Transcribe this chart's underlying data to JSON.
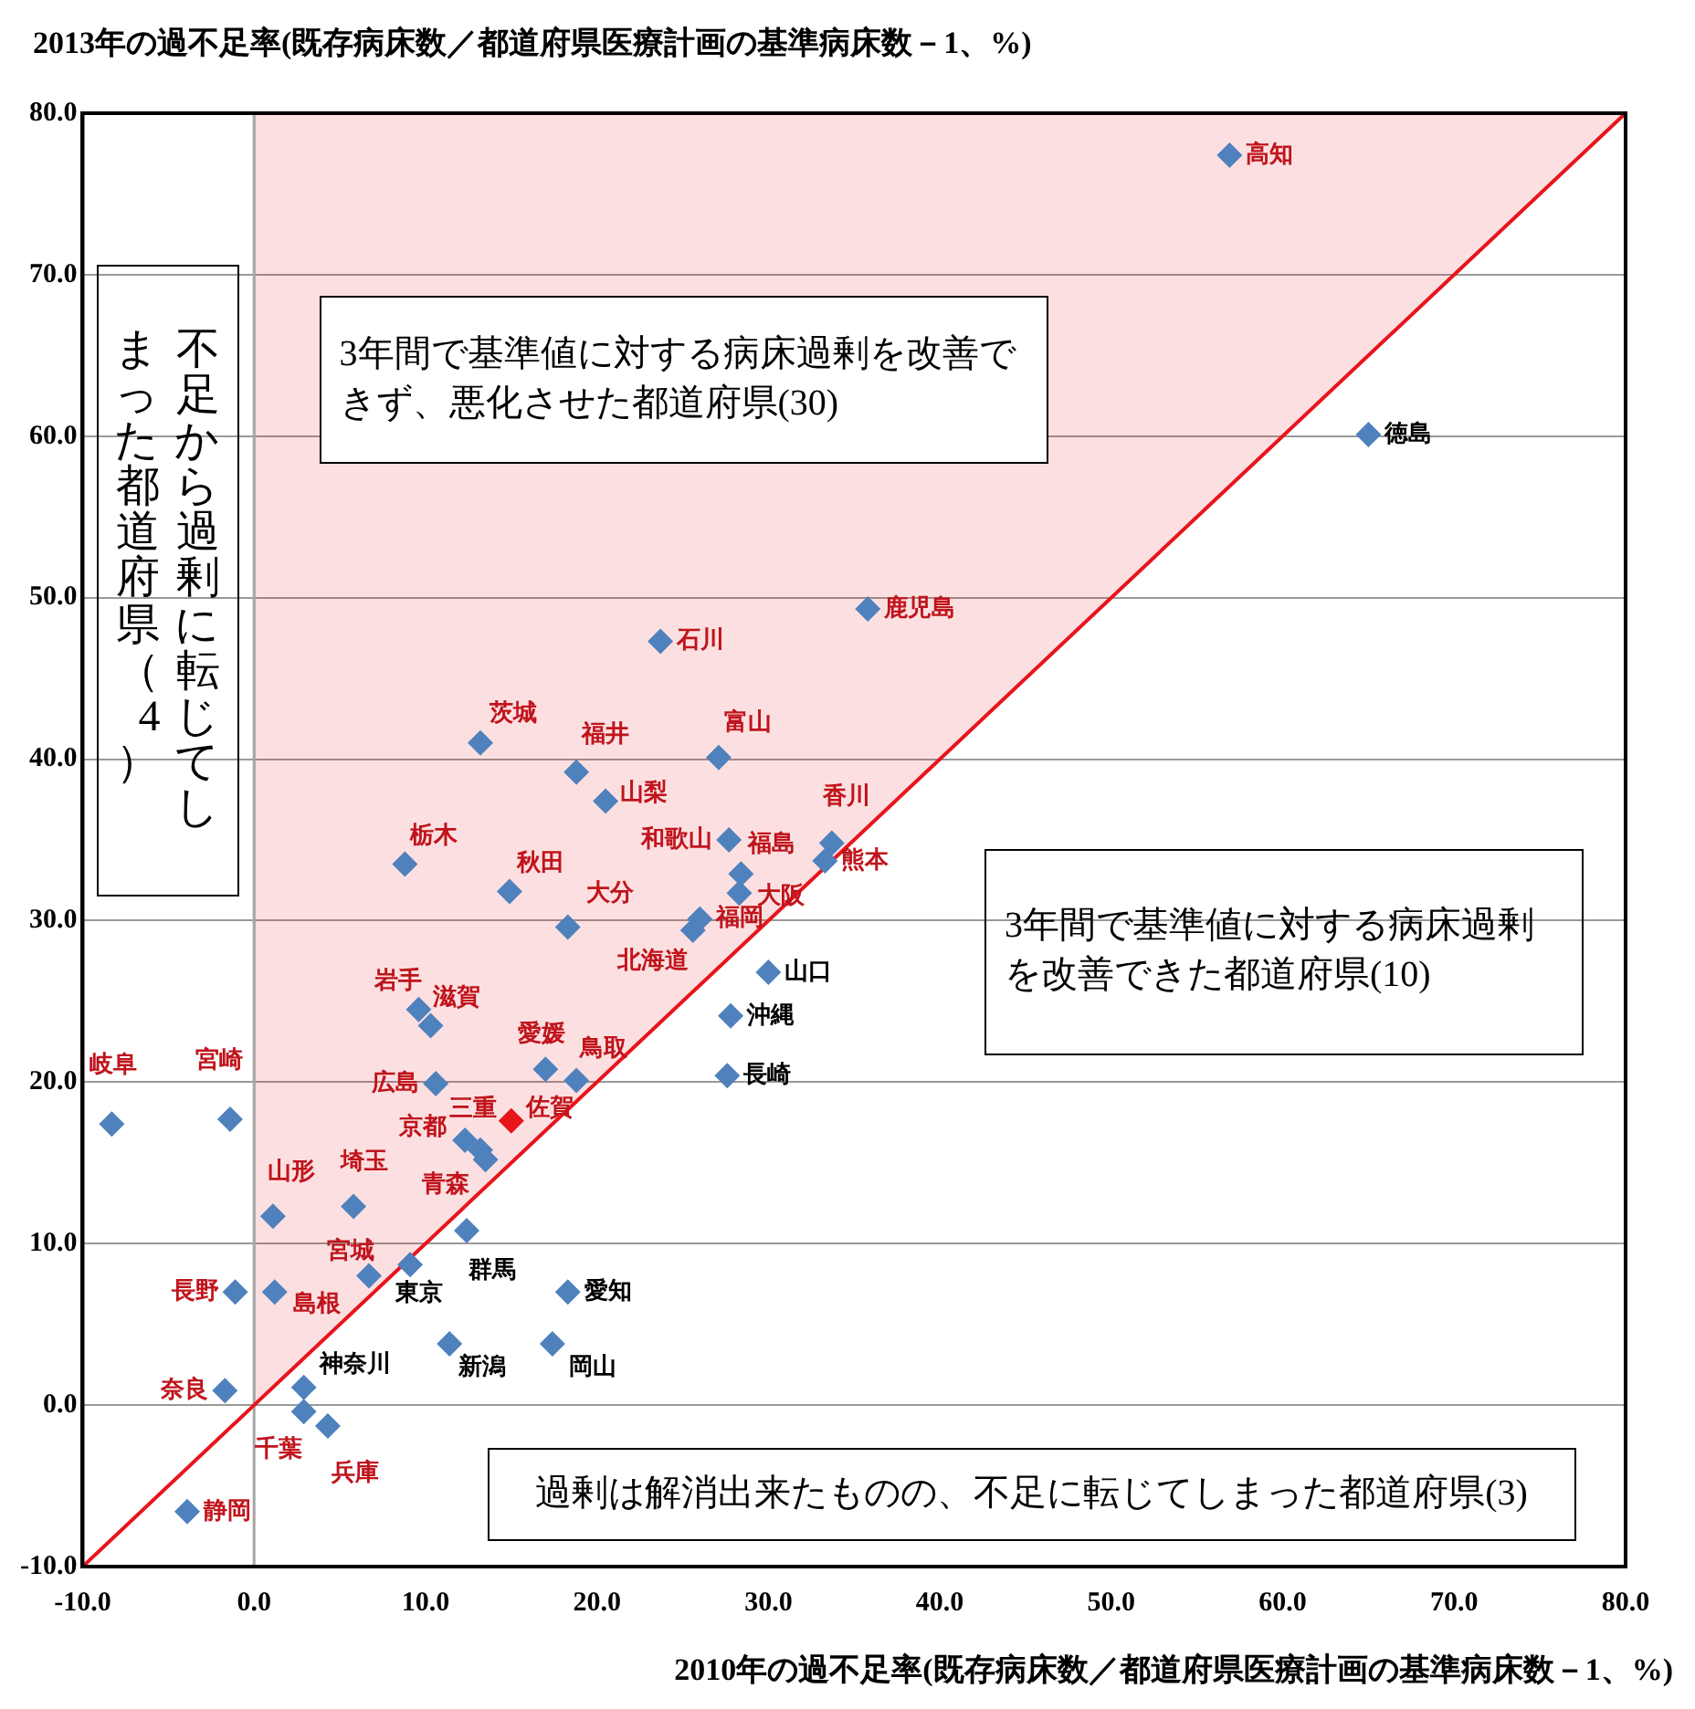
{
  "chart_data": {
    "type": "scatter",
    "xlabel": "2010年の過不足率(既存病床数／都道府県医療計画の基準病床数－1、%)",
    "ylabel": "2013年の過不足率(既存病床数／都道府県医療計画の基準病床数－1、%)",
    "xlim": [
      -10,
      80
    ],
    "ylim": [
      -10,
      80
    ],
    "xticks": [
      {
        "value": -10,
        "label": "-10.0"
      },
      {
        "value": 0,
        "label": "0.0"
      },
      {
        "value": 10,
        "label": "10.0"
      },
      {
        "value": 20,
        "label": "20.0"
      },
      {
        "value": 30,
        "label": "30.0"
      },
      {
        "value": 40,
        "label": "40.0"
      },
      {
        "value": 50,
        "label": "50.0"
      },
      {
        "value": 60,
        "label": "60.0"
      },
      {
        "value": 70,
        "label": "70.0"
      },
      {
        "value": 80,
        "label": "80.0"
      }
    ],
    "yticks": [
      {
        "value": -10,
        "label": "-10.0"
      },
      {
        "value": 0,
        "label": "0.0"
      },
      {
        "value": 10,
        "label": "10.0"
      },
      {
        "value": 20,
        "label": "20.0"
      },
      {
        "value": 30,
        "label": "30.0"
      },
      {
        "value": 40,
        "label": "40.0"
      },
      {
        "value": 50,
        "label": "50.0"
      },
      {
        "value": 60,
        "label": "60.0"
      },
      {
        "value": 70,
        "label": "70.0"
      },
      {
        "value": 80,
        "label": "80.0"
      }
    ],
    "grid": "y",
    "legend": false,
    "marker": "diamond",
    "ref_lines": [
      {
        "axis": "x",
        "value": 0,
        "color": "#a6a6a6"
      }
    ],
    "series": [
      {
        "x": [
          56.9,
          65.0,
          35.8,
          23.7,
          13.2,
          18.8,
          27.1,
          20.5,
          27.7,
          33.7,
          33.3,
          28.4,
          28.3,
          14.9,
          8.8,
          18.3,
          26.0,
          25.6,
          30.0,
          27.8,
          27.6,
          9.6,
          10.3,
          17.0,
          18.8,
          10.6,
          -8.3,
          -1.4,
          12.3,
          13.2,
          13.5,
          15.0,
          1.1,
          5.8,
          6.7,
          9.1,
          12.4,
          -1.1,
          1.2,
          11.4,
          18.3,
          17.4,
          -1.7,
          2.9,
          2.9,
          4.3,
          -3.9
        ],
        "values": [
          77.4,
          60.1,
          49.3,
          47.3,
          41.0,
          39.2,
          40.1,
          37.4,
          35.0,
          34.8,
          33.7,
          32.9,
          31.7,
          31.8,
          33.5,
          29.6,
          30.1,
          29.4,
          26.8,
          24.1,
          20.4,
          24.5,
          23.5,
          20.8,
          20.1,
          19.9,
          17.4,
          17.7,
          16.4,
          15.8,
          15.2,
          17.6,
          11.7,
          12.3,
          8.0,
          8.7,
          10.8,
          7.0,
          7.0,
          3.8,
          7.0,
          3.8,
          0.9,
          1.1,
          -0.4,
          -1.3,
          -6.6
        ],
        "colors": [
          "#4f81bd",
          "#4f81bd",
          "#4f81bd",
          "#4f81bd",
          "#4f81bd",
          "#4f81bd",
          "#4f81bd",
          "#4f81bd",
          "#4f81bd",
          "#4f81bd",
          "#4f81bd",
          "#4f81bd",
          "#4f81bd",
          "#4f81bd",
          "#4f81bd",
          "#4f81bd",
          "#4f81bd",
          "#4f81bd",
          "#4f81bd",
          "#4f81bd",
          "#4f81bd",
          "#4f81bd",
          "#4f81bd",
          "#4f81bd",
          "#4f81bd",
          "#4f81bd",
          "#4f81bd",
          "#4f81bd",
          "#4f81bd",
          "#4f81bd",
          "#4f81bd",
          "#e8141c",
          "#4f81bd",
          "#4f81bd",
          "#4f81bd",
          "#4f81bd",
          "#4f81bd",
          "#4f81bd",
          "#4f81bd",
          "#4f81bd",
          "#4f81bd",
          "#4f81bd",
          "#4f81bd",
          "#4f81bd",
          "#4f81bd",
          "#4f81bd",
          "#4f81bd"
        ]
      },
      {
        "type": "line",
        "marker": "none",
        "color": "#e8141c",
        "x": [
          -10,
          0,
          80
        ],
        "values": [
          -10,
          0,
          80
        ],
        "lower": [
          null,
          0,
          80
        ],
        "upper": [
          null,
          80,
          80
        ]
      }
    ],
    "annotations": [
      "3年間で基準値に対する病床過剰を改善できず、悪化させた都道府県(30)",
      "3年間で基準値に対する病床過剰を改善できた都道府県(10)",
      "過剰は解消出来たものの、不足に転じてしまった都道府県(3)",
      "不足から過剰に転じてしまった都道府県（4）",
      {
        "text": "高知",
        "x": 56.9,
        "y": 77.4
      },
      {
        "text": "徳島",
        "x": 65.0,
        "y": 60.1
      },
      {
        "text": "鹿児島",
        "x": 35.8,
        "y": 49.3
      },
      {
        "text": "石川",
        "x": 23.7,
        "y": 47.3
      },
      {
        "text": "茨城",
        "x": 13.2,
        "y": 41.0
      },
      {
        "text": "福井",
        "x": 18.8,
        "y": 39.2
      },
      {
        "text": "富山",
        "x": 27.1,
        "y": 40.1
      },
      {
        "text": "山梨",
        "x": 20.5,
        "y": 37.4
      },
      {
        "text": "和歌山",
        "x": 27.7,
        "y": 35.0
      },
      {
        "text": "香川",
        "x": 33.7,
        "y": 34.8
      },
      {
        "text": "熊本",
        "x": 33.3,
        "y": 33.7
      },
      {
        "text": "福島",
        "x": 28.4,
        "y": 32.9
      },
      {
        "text": "大阪",
        "x": 28.3,
        "y": 31.7
      },
      {
        "text": "秋田",
        "x": 14.9,
        "y": 31.8
      },
      {
        "text": "栃木",
        "x": 8.8,
        "y": 33.5
      },
      {
        "text": "大分",
        "x": 18.3,
        "y": 29.6
      },
      {
        "text": "福岡",
        "x": 26.0,
        "y": 30.1
      },
      {
        "text": "北海道",
        "x": 25.6,
        "y": 29.4
      },
      {
        "text": "山口",
        "x": 30.0,
        "y": 26.8
      },
      {
        "text": "沖縄",
        "x": 27.8,
        "y": 24.1
      },
      {
        "text": "長崎",
        "x": 27.6,
        "y": 20.4
      },
      {
        "text": "岩手",
        "x": 9.6,
        "y": 24.5
      },
      {
        "text": "滋賀",
        "x": 10.3,
        "y": 23.5
      },
      {
        "text": "愛媛",
        "x": 17.0,
        "y": 20.8
      },
      {
        "text": "鳥取",
        "x": 18.8,
        "y": 20.1
      },
      {
        "text": "広島",
        "x": 10.6,
        "y": 19.9
      },
      {
        "text": "岐阜",
        "x": -8.3,
        "y": 17.4
      },
      {
        "text": "宮崎",
        "x": -1.4,
        "y": 17.7
      },
      {
        "text": "京都",
        "x": 12.3,
        "y": 16.4
      },
      {
        "text": "三重",
        "x": 13.2,
        "y": 15.8
      },
      {
        "text": "青森",
        "x": 13.5,
        "y": 15.2
      },
      {
        "text": "佐賀",
        "x": 15.0,
        "y": 17.6
      },
      {
        "text": "山形",
        "x": 1.1,
        "y": 11.7
      },
      {
        "text": "埼玉",
        "x": 5.8,
        "y": 12.3
      },
      {
        "text": "宮城",
        "x": 6.7,
        "y": 8.0
      },
      {
        "text": "東京",
        "x": 9.1,
        "y": 8.7
      },
      {
        "text": "群馬",
        "x": 12.4,
        "y": 10.8
      },
      {
        "text": "長野",
        "x": -1.1,
        "y": 7.0
      },
      {
        "text": "島根",
        "x": 1.2,
        "y": 7.0
      },
      {
        "text": "新潟",
        "x": 11.4,
        "y": 3.8
      },
      {
        "text": "愛知",
        "x": 18.3,
        "y": 7.0
      },
      {
        "text": "岡山",
        "x": 17.4,
        "y": 3.8
      },
      {
        "text": "奈良",
        "x": -1.7,
        "y": 0.9
      },
      {
        "text": "神奈川",
        "x": 2.9,
        "y": 1.1
      },
      {
        "text": "千葉",
        "x": 2.9,
        "y": -0.4
      },
      {
        "text": "兵庫",
        "x": 4.3,
        "y": -1.3
      },
      {
        "text": "静岡",
        "x": -3.9,
        "y": -6.6
      }
    ]
  }
}
